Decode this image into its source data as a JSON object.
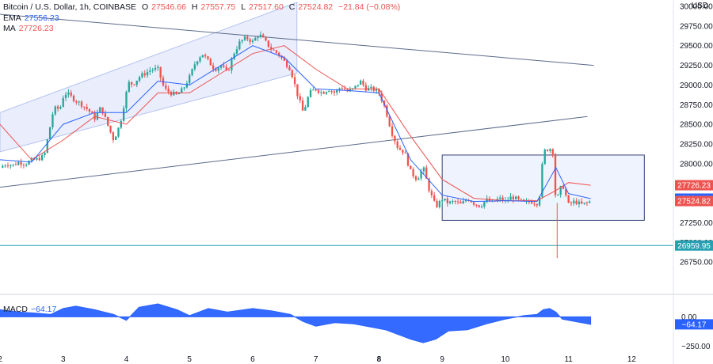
{
  "header": {
    "symbol": "Bitcoin / U.S. Dollar, 1h, COINBASE",
    "o_label": "O",
    "o_value": "27546.66",
    "h_label": "H",
    "h_value": "27557.75",
    "l_label": "L",
    "l_value": "27517.60",
    "c_label": "C",
    "c_value": "27524.82",
    "change": "−21.84 (−0.08%)",
    "ema_label": "EMA",
    "ema_value": "27556.23",
    "ma_label": "MA",
    "ma_value": "27726.23",
    "currency": "USD"
  },
  "macd_panel": {
    "label": "MACD",
    "value": "−64.17"
  },
  "colors": {
    "up": "#26a69a",
    "down": "#ef5350",
    "ema": "#2962ff",
    "ma": "#ef5350",
    "trendline": "#5b6b8a",
    "channel_fill": "#dfe6fb",
    "channel_stroke": "#b5c3ee",
    "box_fill": "#e8eefc",
    "box_stroke": "#33417a",
    "hline": "#26a1b3",
    "macd": "#2962ff"
  },
  "chart_data": [
    {
      "type": "candlestick",
      "ylim": [
        26500,
        30000
      ],
      "xlim": [
        2,
        12.5
      ],
      "y_ticks": [
        "30000.00",
        "29750.00",
        "29500.00",
        "29250.00",
        "29000.00",
        "28750.00",
        "28500.00",
        "28250.00",
        "28000.00",
        "27750.00",
        "27500.00",
        "27250.00",
        "27000.00",
        "26750.00"
      ],
      "x_ticks": [
        "2",
        "3",
        "4",
        "5",
        "6",
        "7",
        "8",
        "9",
        "10",
        "11",
        "12"
      ],
      "close_path": [
        [
          2.0,
          27950
        ],
        [
          2.1,
          28000
        ],
        [
          2.2,
          27980
        ],
        [
          2.3,
          28020
        ],
        [
          2.4,
          28000
        ],
        [
          2.5,
          28040
        ],
        [
          2.6,
          28060
        ],
        [
          2.7,
          28100
        ],
        [
          2.75,
          28300
        ],
        [
          2.85,
          28700
        ],
        [
          2.95,
          28700
        ],
        [
          3.0,
          28850
        ],
        [
          3.05,
          28900
        ],
        [
          3.2,
          28800
        ],
        [
          3.3,
          28750
        ],
        [
          3.4,
          28680
        ],
        [
          3.5,
          28580
        ],
        [
          3.6,
          28720
        ],
        [
          3.7,
          28500
        ],
        [
          3.8,
          28300
        ],
        [
          3.9,
          28500
        ],
        [
          4.0,
          28900
        ],
        [
          4.05,
          29050
        ],
        [
          4.1,
          29000
        ],
        [
          4.2,
          29100
        ],
        [
          4.3,
          29150
        ],
        [
          4.4,
          29200
        ],
        [
          4.5,
          29200
        ],
        [
          4.6,
          28950
        ],
        [
          4.7,
          28900
        ],
        [
          4.8,
          28870
        ],
        [
          4.9,
          28950
        ],
        [
          5.0,
          29100
        ],
        [
          5.1,
          29300
        ],
        [
          5.2,
          29400
        ],
        [
          5.3,
          29300
        ],
        [
          5.4,
          29200
        ],
        [
          5.5,
          29250
        ],
        [
          5.6,
          29150
        ],
        [
          5.7,
          29400
        ],
        [
          5.8,
          29550
        ],
        [
          5.9,
          29600
        ],
        [
          6.0,
          29550
        ],
        [
          6.1,
          29650
        ],
        [
          6.2,
          29550
        ],
        [
          6.3,
          29450
        ],
        [
          6.4,
          29400
        ],
        [
          6.5,
          29300
        ],
        [
          6.6,
          29200
        ],
        [
          6.7,
          28900
        ],
        [
          6.8,
          28650
        ],
        [
          6.9,
          28900
        ],
        [
          7.0,
          28950
        ],
        [
          7.1,
          28900
        ],
        [
          7.2,
          28950
        ],
        [
          7.3,
          28900
        ],
        [
          7.4,
          28980
        ],
        [
          7.5,
          28920
        ],
        [
          7.6,
          28950
        ],
        [
          7.7,
          29050
        ],
        [
          7.8,
          28950
        ],
        [
          7.9,
          28950
        ],
        [
          8.0,
          28900
        ],
        [
          8.1,
          28700
        ],
        [
          8.2,
          28400
        ],
        [
          8.3,
          28200
        ],
        [
          8.4,
          28150
        ],
        [
          8.5,
          27900
        ],
        [
          8.6,
          27800
        ],
        [
          8.7,
          27950
        ],
        [
          8.8,
          27650
        ],
        [
          8.9,
          27450
        ],
        [
          9.0,
          27550
        ],
        [
          9.1,
          27500
        ],
        [
          9.2,
          27520
        ],
        [
          9.3,
          27480
        ],
        [
          9.4,
          27560
        ],
        [
          9.5,
          27500
        ],
        [
          9.6,
          27460
        ],
        [
          9.7,
          27540
        ],
        [
          9.8,
          27500
        ],
        [
          9.9,
          27560
        ],
        [
          10.0,
          27520
        ],
        [
          10.1,
          27580
        ],
        [
          10.2,
          27540
        ],
        [
          10.3,
          27500
        ],
        [
          10.4,
          27520
        ],
        [
          10.5,
          27500
        ],
        [
          10.55,
          27620
        ],
        [
          10.6,
          28150
        ],
        [
          10.7,
          28200
        ],
        [
          10.75,
          28150
        ],
        [
          10.8,
          27500
        ],
        [
          10.9,
          27750
        ],
        [
          11.0,
          27480
        ],
        [
          11.1,
          27520
        ],
        [
          11.2,
          27480
        ],
        [
          11.3,
          27500
        ],
        [
          11.35,
          27525
        ]
      ],
      "ema_path": [
        [
          2.0,
          28050
        ],
        [
          2.5,
          28020
        ],
        [
          3.0,
          28500
        ],
        [
          3.5,
          28650
        ],
        [
          4.0,
          28650
        ],
        [
          4.5,
          29050
        ],
        [
          5.0,
          29000
        ],
        [
          5.5,
          29250
        ],
        [
          6.0,
          29500
        ],
        [
          6.5,
          29350
        ],
        [
          7.0,
          28950
        ],
        [
          7.5,
          28930
        ],
        [
          8.0,
          28900
        ],
        [
          8.5,
          28050
        ],
        [
          9.0,
          27600
        ],
        [
          9.5,
          27520
        ],
        [
          10.0,
          27530
        ],
        [
          10.5,
          27520
        ],
        [
          10.8,
          27950
        ],
        [
          11.0,
          27620
        ],
        [
          11.35,
          27556
        ]
      ],
      "ma_path": [
        [
          2.0,
          28500
        ],
        [
          2.5,
          28050
        ],
        [
          3.0,
          28300
        ],
        [
          3.5,
          28600
        ],
        [
          4.0,
          28500
        ],
        [
          4.5,
          28900
        ],
        [
          5.0,
          28900
        ],
        [
          5.5,
          29150
        ],
        [
          6.0,
          29400
        ],
        [
          6.5,
          29500
        ],
        [
          7.0,
          29200
        ],
        [
          7.5,
          28950
        ],
        [
          8.0,
          28950
        ],
        [
          8.5,
          28350
        ],
        [
          9.0,
          27800
        ],
        [
          9.5,
          27560
        ],
        [
          10.0,
          27530
        ],
        [
          10.5,
          27530
        ],
        [
          10.8,
          27660
        ],
        [
          11.0,
          27760
        ],
        [
          11.35,
          27726
        ]
      ],
      "lines": {
        "resistance": [
          [
            2.0,
            29900
          ],
          [
            11.4,
            29250
          ]
        ],
        "support": [
          [
            2.0,
            27700
          ],
          [
            11.3,
            28600
          ]
        ],
        "channel": {
          "lower": [
            [
              2.0,
              28150
            ],
            [
              6.7,
              29150
            ]
          ],
          "upper": [
            [
              2.0,
              28650
            ],
            [
              6.7,
              30050
            ]
          ]
        },
        "range_box": {
          "x": [
            9.0,
            12.2
          ],
          "y": [
            27280,
            28110
          ]
        },
        "horizontal": 26959.95
      },
      "price_labels": [
        {
          "value": "27726.23",
          "price": 27726.23,
          "color": "#ef5350"
        },
        {
          "value": "27556.23",
          "price": 27556.23,
          "color": "#2962ff"
        },
        {
          "value": "27524.82",
          "price": 27524.82,
          "color": "#ef5350"
        },
        {
          "value": "26959.95",
          "price": 26959.95,
          "color": "#26a1b3"
        }
      ]
    },
    {
      "type": "area",
      "series": "MACD",
      "ylim": [
        -300,
        150
      ],
      "y_ticks": [
        "0.00",
        "−250.00"
      ],
      "zero_label": "−64.17",
      "x": [
        2.0,
        2.3,
        2.6,
        2.8,
        3.0,
        3.2,
        3.5,
        3.8,
        4.0,
        4.2,
        4.5,
        4.8,
        5.0,
        5.3,
        5.6,
        6.0,
        6.3,
        6.6,
        6.8,
        7.0,
        7.3,
        7.6,
        7.9,
        8.1,
        8.3,
        8.5,
        8.7,
        8.9,
        9.1,
        9.4,
        9.7,
        10.0,
        10.3,
        10.5,
        10.6,
        10.7,
        10.8,
        10.9,
        11.1,
        11.35
      ],
      "values": [
        60,
        40,
        30,
        20,
        70,
        90,
        60,
        20,
        -30,
        80,
        110,
        60,
        10,
        70,
        40,
        70,
        50,
        20,
        -40,
        -80,
        -50,
        -60,
        -90,
        -110,
        -150,
        -190,
        -220,
        -190,
        -120,
        -110,
        -60,
        -20,
        10,
        20,
        60,
        70,
        40,
        -20,
        -40,
        -64.17
      ]
    }
  ]
}
